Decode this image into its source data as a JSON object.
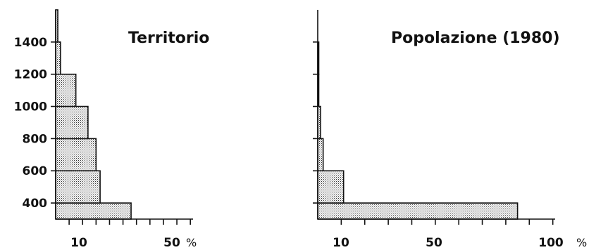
{
  "chart_data": [
    {
      "type": "bar",
      "orientation": "horizontal",
      "title": "Territorio",
      "y_ticks": [
        "1400",
        "1200",
        "1000",
        "800",
        "600",
        "400"
      ],
      "x_ticks": [
        "10",
        "50"
      ],
      "x_unit": "%",
      "bins": [
        {
          "from": 300,
          "to": 400,
          "value": 28
        },
        {
          "from": 400,
          "to": 600,
          "value": 16.5
        },
        {
          "from": 600,
          "to": 800,
          "value": 15
        },
        {
          "from": 800,
          "to": 1000,
          "value": 12
        },
        {
          "from": 1000,
          "to": 1200,
          "value": 7.5
        },
        {
          "from": 1200,
          "to": 1400,
          "value": 1.8
        },
        {
          "from": 1400,
          "to": 1600,
          "value": 0.8
        }
      ],
      "x_ticks_at": [
        5,
        10,
        15,
        20,
        25,
        30,
        35,
        40,
        45,
        50
      ],
      "xlim": [
        0,
        51
      ],
      "ylim": [
        300,
        1600
      ]
    },
    {
      "type": "bar",
      "orientation": "horizontal",
      "title": "Popolazione (1980)",
      "y_ticks": [
        "1400",
        "1200",
        "1000",
        "800",
        "600",
        "400"
      ],
      "x_ticks": [
        "10",
        "50",
        "100"
      ],
      "x_unit": "%",
      "bins": [
        {
          "from": 300,
          "to": 400,
          "value": 85
        },
        {
          "from": 400,
          "to": 600,
          "value": 11
        },
        {
          "from": 600,
          "to": 800,
          "value": 2.3
        },
        {
          "from": 800,
          "to": 1000,
          "value": 1.2
        },
        {
          "from": 1000,
          "to": 1200,
          "value": 0.3
        },
        {
          "from": 1200,
          "to": 1400,
          "value": 0.1
        },
        {
          "from": 1400,
          "to": 1600,
          "value": 0
        }
      ],
      "x_ticks_at": [
        10,
        20,
        30,
        40,
        50,
        60,
        70,
        80,
        90,
        100
      ],
      "xlim": [
        0,
        101
      ],
      "ylim": [
        300,
        1600
      ]
    }
  ]
}
